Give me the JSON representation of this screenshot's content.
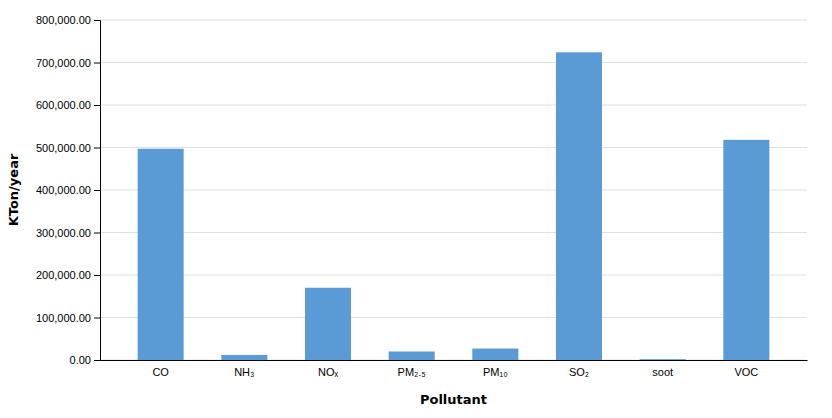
{
  "chart_data": {
    "type": "bar",
    "categories": [
      "CO",
      "NH₃",
      "NOₓ",
      "PM₂.₅",
      "PM₁₀",
      "SO₂",
      "soot",
      "VOC"
    ],
    "values": [
      497000,
      12000,
      170000,
      20000,
      27000,
      724000,
      2000,
      518000
    ],
    "color": "#5b9bd5",
    "xlabel": "Pollutant",
    "ylabel": "KTon/year",
    "ylim": [
      0,
      800000
    ],
    "yticks": [
      {
        "value": 0,
        "label": "0.00"
      },
      {
        "value": 100000,
        "label": "100,000.00"
      },
      {
        "value": 200000,
        "label": "200,000.00"
      },
      {
        "value": 300000,
        "label": "300,000.00"
      },
      {
        "value": 400000,
        "label": "400,000.00"
      },
      {
        "value": 500000,
        "label": "500,000.00"
      },
      {
        "value": 600000,
        "label": "600,000.00"
      },
      {
        "value": 700000,
        "label": "700,000.00"
      },
      {
        "value": 800000,
        "label": "800,000.00"
      }
    ],
    "grid": true
  }
}
